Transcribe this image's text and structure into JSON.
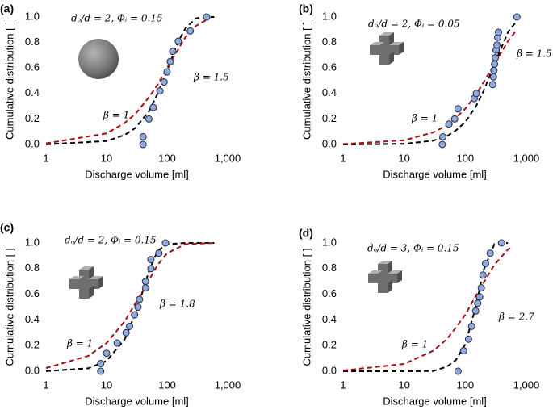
{
  "chart_data": [
    {
      "type": "scatter",
      "panel_label": "(a)",
      "xlabel": "Discharge volume [ml]",
      "ylabel": "Cumulative distribution [ ]",
      "xlog": true,
      "xlim": [
        1,
        1000
      ],
      "ylim": [
        0,
        1
      ],
      "xticks": [
        1,
        10,
        100,
        {
          "value": 1000,
          "label": "1,000"
        }
      ],
      "yticks": [
        {
          "value": 0,
          "label": "0.0"
        },
        {
          "value": 0.2,
          "label": "0.2"
        },
        {
          "value": 0.4,
          "label": "0.4"
        },
        {
          "value": 0.6,
          "label": "0.6"
        },
        {
          "value": 0.8,
          "label": "0.8"
        },
        {
          "value": 1,
          "label": "1.0"
        }
      ],
      "annotations": [
        {
          "text": "dₒ/d = 2, Φᵢ = 0.15",
          "color": "#000000"
        },
        {
          "text": "β = 1.5",
          "color": "#000000"
        },
        {
          "text": "β = 1",
          "color": "#a50f15"
        }
      ],
      "series": [
        {
          "type": "scatter",
          "color": "#8eaadb",
          "x": [
            40,
            40,
            50,
            59,
            76,
            89,
            100,
            113,
            124,
            153,
            241,
            450
          ],
          "values": [
            0,
            0.06,
            0.2,
            0.29,
            0.42,
            0.49,
            0.57,
            0.65,
            0.73,
            0.81,
            0.89,
            1.0
          ]
        },
        {
          "type": "line",
          "style": "dashed",
          "color": "#000000",
          "x": [
            1,
            10,
            20,
            30,
            50,
            70,
            100,
            150,
            200,
            300,
            500,
            600
          ],
          "values": [
            0.001,
            0.027,
            0.075,
            0.13,
            0.26,
            0.4,
            0.58,
            0.8,
            0.91,
            0.99,
            1.0,
            1.0
          ]
        },
        {
          "type": "line",
          "style": "dashed",
          "color": "#a50f15",
          "x": [
            1,
            10,
            20,
            30,
            50,
            70,
            100,
            150,
            200,
            300,
            500
          ],
          "values": [
            0.009,
            0.087,
            0.17,
            0.24,
            0.37,
            0.47,
            0.6,
            0.74,
            0.84,
            0.93,
            0.99
          ]
        }
      ]
    },
    {
      "type": "scatter",
      "panel_label": "(b)",
      "xlabel": "Discharge volume [ml]",
      "ylabel": "Cumulative distribution [ ]",
      "xlog": true,
      "xlim": [
        1,
        1000
      ],
      "ylim": [
        0,
        1
      ],
      "xticks": [
        1,
        10,
        100,
        {
          "value": 1000,
          "label": "1,000"
        }
      ],
      "yticks": [
        {
          "value": 0,
          "label": "0.0"
        },
        {
          "value": 0.2,
          "label": "0.2"
        },
        {
          "value": 0.4,
          "label": "0.4"
        },
        {
          "value": 0.6,
          "label": "0.6"
        },
        {
          "value": 0.8,
          "label": "0.8"
        },
        {
          "value": 1,
          "label": "1.0"
        }
      ],
      "annotations": [
        {
          "text": "dₒ/d = 2, Φᵢ = 0.05",
          "color": "#000000"
        },
        {
          "text": "β = 1.5",
          "color": "#000000"
        },
        {
          "text": "β = 1",
          "color": "#a50f15"
        }
      ],
      "series": [
        {
          "type": "scatter",
          "color": "#8eaadb",
          "x": [
            42,
            43,
            54,
            67,
            76,
            140,
            152,
            281,
            290,
            295,
            302,
            310,
            320,
            330,
            340,
            350,
            700
          ],
          "values": [
            0,
            0.06,
            0.16,
            0.2,
            0.28,
            0.36,
            0.4,
            0.47,
            0.53,
            0.58,
            0.63,
            0.68,
            0.74,
            0.78,
            0.84,
            0.88,
            1.0
          ]
        },
        {
          "type": "line",
          "style": "dashed",
          "color": "#000000",
          "x": [
            1,
            10,
            30,
            50,
            70,
            100,
            150,
            200,
            300,
            500,
            700
          ],
          "values": [
            0,
            0.005,
            0.03,
            0.066,
            0.11,
            0.175,
            0.3,
            0.42,
            0.63,
            0.88,
            0.97
          ]
        },
        {
          "type": "line",
          "style": "dashed",
          "color": "#a50f15",
          "x": [
            1,
            10,
            30,
            50,
            70,
            100,
            150,
            200,
            300,
            500,
            700
          ],
          "values": [
            0.003,
            0.033,
            0.095,
            0.15,
            0.21,
            0.28,
            0.39,
            0.49,
            0.63,
            0.81,
            0.9
          ]
        }
      ]
    },
    {
      "type": "scatter",
      "panel_label": "(c)",
      "xlabel": "Discharge volume [ml]",
      "ylabel": "Cumulative distribution [ ]",
      "xlog": true,
      "xlim": [
        1,
        1000
      ],
      "ylim": [
        0,
        1
      ],
      "xticks": [
        1,
        10,
        100,
        {
          "value": 1000,
          "label": "1,000"
        }
      ],
      "yticks": [
        {
          "value": 0,
          "label": "0.0"
        },
        {
          "value": 0.2,
          "label": "0.2"
        },
        {
          "value": 0.4,
          "label": "0.4"
        },
        {
          "value": 0.6,
          "label": "0.6"
        },
        {
          "value": 0.8,
          "label": "0.8"
        },
        {
          "value": 1,
          "label": "1.0"
        }
      ],
      "annotations": [
        {
          "text": "dₒ/d = 2, Φᵢ = 0.15",
          "color": "#000000"
        },
        {
          "text": "β = 1.8",
          "color": "#000000"
        },
        {
          "text": "β = 1",
          "color": "#a50f15"
        }
      ],
      "series": [
        {
          "type": "scatter",
          "color": "#8eaadb",
          "x": [
            8,
            8,
            10,
            15,
            21,
            24,
            29,
            33,
            35,
            44,
            44,
            54,
            54,
            73,
            94
          ],
          "values": [
            0,
            0.06,
            0.14,
            0.22,
            0.3,
            0.35,
            0.44,
            0.5,
            0.56,
            0.65,
            0.7,
            0.8,
            0.87,
            0.92,
            1.0
          ]
        },
        {
          "type": "line",
          "style": "dashed",
          "color": "#000000",
          "x": [
            1,
            5,
            10,
            20,
            30,
            40,
            50,
            70,
            100,
            200,
            600
          ],
          "values": [
            0.001,
            0.023,
            0.08,
            0.25,
            0.45,
            0.63,
            0.78,
            0.94,
            0.99,
            1.0,
            1.0
          ]
        },
        {
          "type": "line",
          "style": "dashed",
          "color": "#a50f15",
          "x": [
            1,
            5,
            10,
            20,
            30,
            40,
            50,
            70,
            100,
            200,
            600
          ],
          "values": [
            0.025,
            0.12,
            0.22,
            0.39,
            0.53,
            0.63,
            0.71,
            0.83,
            0.92,
            0.99,
            1.0
          ]
        }
      ]
    },
    {
      "type": "scatter",
      "panel_label": "(d)",
      "xlabel": "Discharge volume [ml]",
      "ylabel": "Cumulative distribution [ ]",
      "xlog": true,
      "xlim": [
        1,
        1000
      ],
      "ylim": [
        0,
        1
      ],
      "xticks": [
        1,
        10,
        100,
        {
          "value": 1000,
          "label": "1,000"
        }
      ],
      "yticks": [
        {
          "value": 0,
          "label": "0.0"
        },
        {
          "value": 0.2,
          "label": "0.2"
        },
        {
          "value": 0.4,
          "label": "0.4"
        },
        {
          "value": 0.6,
          "label": "0.6"
        },
        {
          "value": 0.8,
          "label": "0.8"
        },
        {
          "value": 1,
          "label": "1.0"
        }
      ],
      "annotations": [
        {
          "text": "dₒ/d = 3, Φᵢ = 0.15",
          "color": "#000000"
        },
        {
          "text": "β = 2.7",
          "color": "#000000"
        },
        {
          "text": "β = 1",
          "color": "#a50f15"
        }
      ],
      "series": [
        {
          "type": "scatter",
          "color": "#8eaadb",
          "x": [
            76,
            94,
            113,
            127,
            148,
            160,
            172,
            183,
            195,
            215,
            256,
            393
          ],
          "values": [
            0,
            0.16,
            0.25,
            0.35,
            0.47,
            0.53,
            0.58,
            0.65,
            0.75,
            0.84,
            0.92,
            1.0
          ]
        },
        {
          "type": "line",
          "style": "dashed",
          "color": "#000000",
          "x": [
            1,
            10,
            30,
            50,
            70,
            100,
            150,
            200,
            300,
            500
          ],
          "values": [
            0,
            0,
            0.002,
            0.036,
            0.087,
            0.21,
            0.51,
            0.79,
            0.99,
            1.0
          ]
        },
        {
          "type": "line",
          "style": "dashed",
          "color": "#a50f15",
          "x": [
            1,
            10,
            30,
            50,
            70,
            100,
            150,
            200,
            300,
            500,
            600
          ],
          "values": [
            0.006,
            0.057,
            0.16,
            0.25,
            0.34,
            0.44,
            0.59,
            0.69,
            0.83,
            0.95,
            0.97
          ]
        }
      ]
    }
  ]
}
